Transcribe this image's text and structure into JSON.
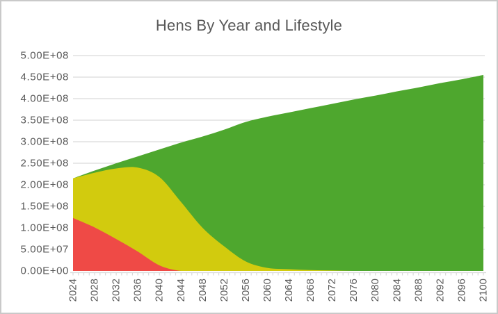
{
  "figure": {
    "background": "#ffffff",
    "border_color": "#c9c9c9",
    "text_color": "#595959",
    "grid_color": "#d9d9d9"
  },
  "chart_data": {
    "type": "area",
    "stacked": true,
    "title": "Hens By Year and Lifestyle",
    "xlabel": "",
    "ylabel": "",
    "legend_position": "none",
    "grid": true,
    "xlim": [
      2024,
      2100
    ],
    "ylim": [
      0,
      500000000
    ],
    "y_tick_step": 50000000,
    "y_tick_labels": [
      "0.00E+00",
      "5.00E+07",
      "1.00E+08",
      "1.50E+08",
      "2.00E+08",
      "2.50E+08",
      "3.00E+08",
      "3.50E+08",
      "4.00E+08",
      "4.50E+08",
      "5.00E+08"
    ],
    "x": [
      2024,
      2028,
      2032,
      2036,
      2040,
      2044,
      2048,
      2052,
      2056,
      2060,
      2064,
      2068,
      2072,
      2076,
      2080,
      2084,
      2088,
      2092,
      2096,
      2100
    ],
    "x_tick_labels": [
      "2024",
      "2028",
      "2032",
      "2036",
      "2040",
      "2044",
      "2048",
      "2052",
      "2056",
      "2060",
      "2064",
      "2068",
      "2072",
      "2076",
      "2080",
      "2084",
      "2088",
      "2092",
      "2096",
      "2100"
    ],
    "x_minor_tick_every_years": 1,
    "series": [
      {
        "name": "red",
        "color": "#ef4a46",
        "values": [
          123000000,
          101000000,
          74000000,
          45000000,
          13000000,
          0,
          0,
          0,
          0,
          0,
          0,
          0,
          0,
          0,
          0,
          0,
          0,
          0,
          0,
          0
        ]
      },
      {
        "name": "yellow",
        "color": "#d2cb0e",
        "values": [
          92000000,
          127000000,
          164000000,
          195000000,
          205000000,
          160000000,
          100000000,
          57000000,
          22000000,
          7000000,
          4000000,
          2000000,
          1000000,
          0,
          0,
          0,
          0,
          0,
          0,
          0
        ]
      },
      {
        "name": "green",
        "color": "#4ea72e",
        "values": [
          0,
          5000000,
          12000000,
          26000000,
          64000000,
          138000000,
          212000000,
          271000000,
          324000000,
          351000000,
          364000000,
          376000000,
          387000000,
          398000000,
          407000000,
          417000000,
          426000000,
          436000000,
          445000000,
          455000000
        ]
      }
    ]
  }
}
